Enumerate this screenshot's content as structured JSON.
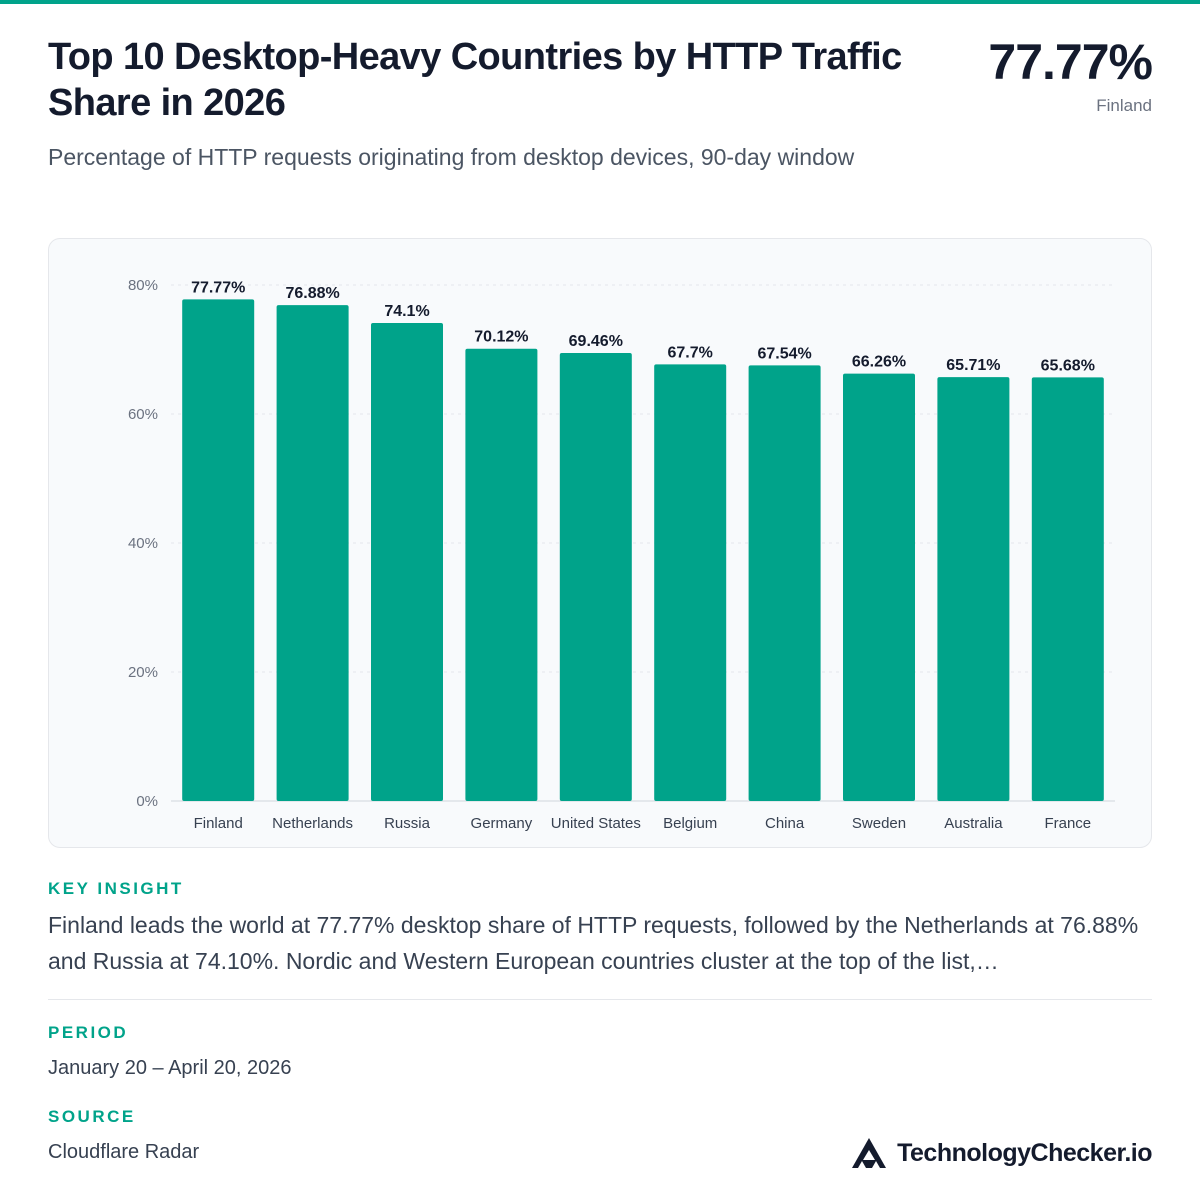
{
  "header": {
    "title": "Top 10 Desktop-Heavy Countries by HTTP Traffic Share in 2026",
    "subtitle": "Percentage of HTTP requests originating from desktop devices, 90-day window",
    "hero_value": "77.77%",
    "hero_label": "Finland"
  },
  "chart_data": {
    "type": "bar",
    "categories": [
      "Finland",
      "Netherlands",
      "Russia",
      "Germany",
      "United States",
      "Belgium",
      "China",
      "Sweden",
      "Australia",
      "France"
    ],
    "values": [
      77.77,
      76.88,
      74.1,
      70.12,
      69.46,
      67.7,
      67.54,
      66.26,
      65.71,
      65.68
    ],
    "value_labels": [
      "77.77%",
      "76.88%",
      "74.1%",
      "70.12%",
      "69.46%",
      "67.7%",
      "67.54%",
      "66.26%",
      "65.71%",
      "65.68%"
    ],
    "y_ticks": [
      0,
      20,
      40,
      60,
      80
    ],
    "y_tick_labels": [
      "0%",
      "20%",
      "40%",
      "60%",
      "80%"
    ],
    "ylim": [
      0,
      80
    ],
    "grid": true,
    "bar_color": "#00a38a"
  },
  "insight": {
    "label": "KEY INSIGHT",
    "text": "Finland leads the world at 77.77% desktop share of HTTP requests, followed by the Netherlands at 76.88% and Russia at 74.10%. Nordic and Western European countries cluster at the top of the list,…"
  },
  "period": {
    "label": "PERIOD",
    "text": "January 20 – April 20, 2026"
  },
  "source": {
    "label": "SOURCE",
    "text": "Cloudflare Radar"
  },
  "brand": {
    "name": "TechnologyChecker.io",
    "icon": "triangle-logo-icon"
  },
  "colors": {
    "accent": "#00a38a",
    "text": "#141b2d",
    "muted": "#6b7280"
  }
}
